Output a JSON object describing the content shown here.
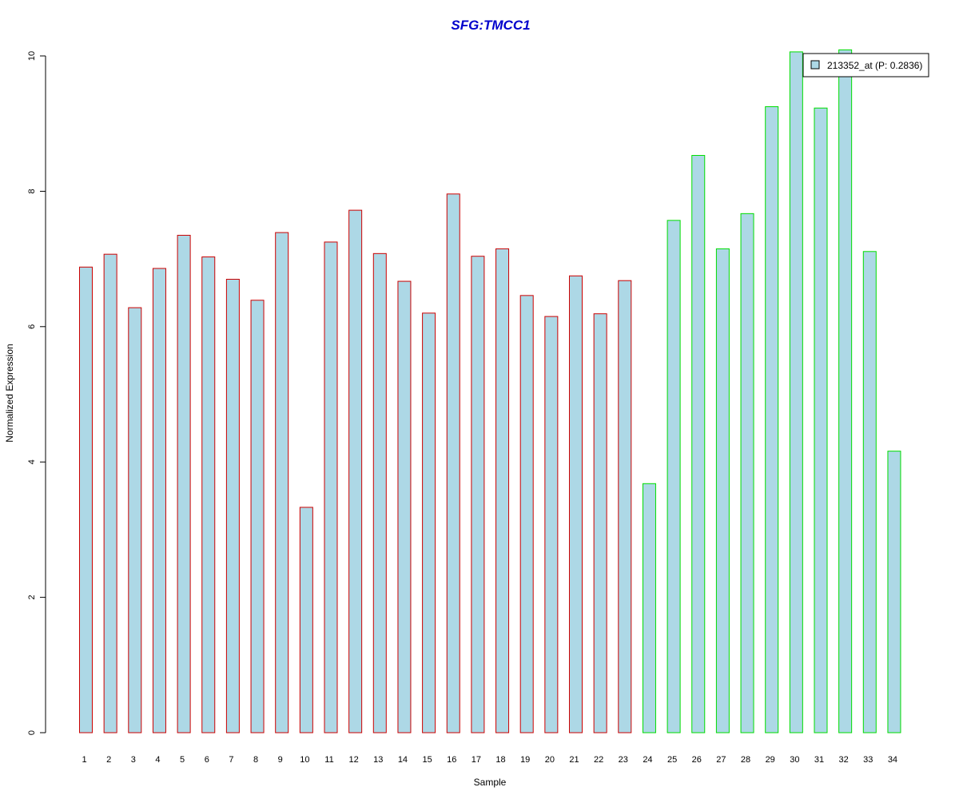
{
  "chart_data": {
    "type": "bar",
    "title": "SFG:TMCC1",
    "xlabel": "Sample",
    "ylabel": "Normalized Expression",
    "ylim": [
      0,
      10
    ],
    "yticks": [
      "0",
      "2",
      "4",
      "6",
      "8",
      "10"
    ],
    "grid": false,
    "categories": [
      "1",
      "2",
      "3",
      "4",
      "5",
      "6",
      "7",
      "8",
      "9",
      "10",
      "11",
      "12",
      "13",
      "14",
      "15",
      "16",
      "17",
      "18",
      "19",
      "20",
      "21",
      "22",
      "23",
      "24",
      "25",
      "26",
      "27",
      "28",
      "29",
      "30",
      "31",
      "32",
      "33",
      "34"
    ],
    "values": [
      6.88,
      7.07,
      6.28,
      6.86,
      7.35,
      7.03,
      6.7,
      6.39,
      7.39,
      3.33,
      7.25,
      7.72,
      7.08,
      6.67,
      6.2,
      7.96,
      7.04,
      7.15,
      6.46,
      6.15,
      6.75,
      6.19,
      6.68,
      3.68,
      7.57,
      8.53,
      7.15,
      7.67,
      9.25,
      10.06,
      9.23,
      10.09,
      7.11,
      4.16
    ],
    "group_border_colors": [
      "#cc0000",
      "#cc0000",
      "#cc0000",
      "#cc0000",
      "#cc0000",
      "#cc0000",
      "#cc0000",
      "#cc0000",
      "#cc0000",
      "#cc0000",
      "#cc0000",
      "#cc0000",
      "#cc0000",
      "#cc0000",
      "#cc0000",
      "#cc0000",
      "#cc0000",
      "#cc0000",
      "#cc0000",
      "#cc0000",
      "#cc0000",
      "#cc0000",
      "#cc0000",
      "#00dd00",
      "#00dd00",
      "#00dd00",
      "#00dd00",
      "#00dd00",
      "#00dd00",
      "#00dd00",
      "#00dd00",
      "#00dd00",
      "#00dd00",
      "#00dd00"
    ],
    "bar_fill": "#add8e6",
    "title_color": "#0000cc",
    "legend": {
      "position": "top-right",
      "entries": [
        {
          "label": "213352_at (P: 0.2836)",
          "fill": "#add8e6"
        }
      ]
    }
  }
}
